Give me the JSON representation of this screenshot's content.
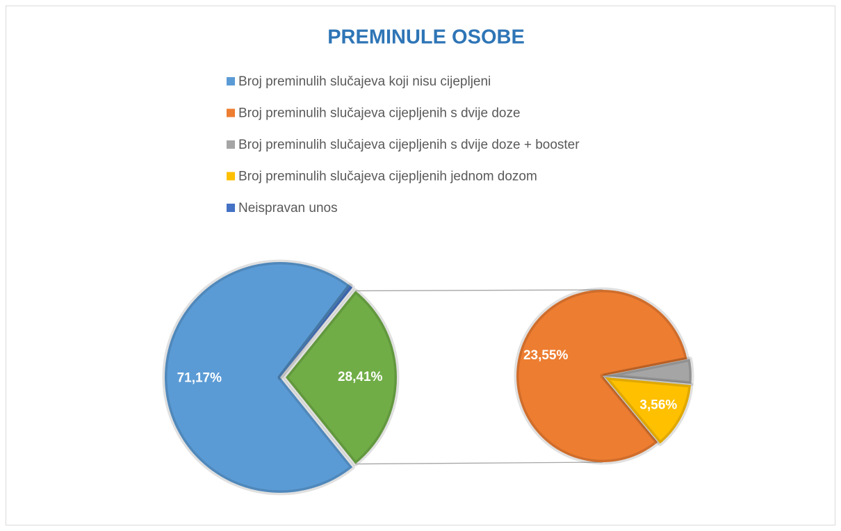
{
  "chart_data": {
    "type": "pie-of-pie",
    "title": "PREMINULE OSOBE",
    "categories": [
      "Broj preminulih slučajeva koji nisu cijepljeni",
      "Broj preminulih slučajeva cijepljenih s dvije doze",
      "Broj preminulih slučajeva cijepljenih s dvije doze + booster",
      "Broj preminulih slučajeva cijepljenih jednom dozom",
      "Neispravan unos"
    ],
    "values": [
      71.17,
      23.55,
      1.3,
      3.56,
      0.42
    ],
    "value_labels": [
      "71,17%",
      "23,55%",
      null,
      "3,56%",
      null
    ],
    "colors": [
      "#5b9bd5",
      "#ed7d31",
      "#a5a5a5",
      "#ffc000",
      "#4472c4"
    ],
    "secondary": [
      false,
      true,
      true,
      true,
      false
    ],
    "other_value": 28.41,
    "other_label": "28,41%",
    "other_color": "#70ad47"
  }
}
